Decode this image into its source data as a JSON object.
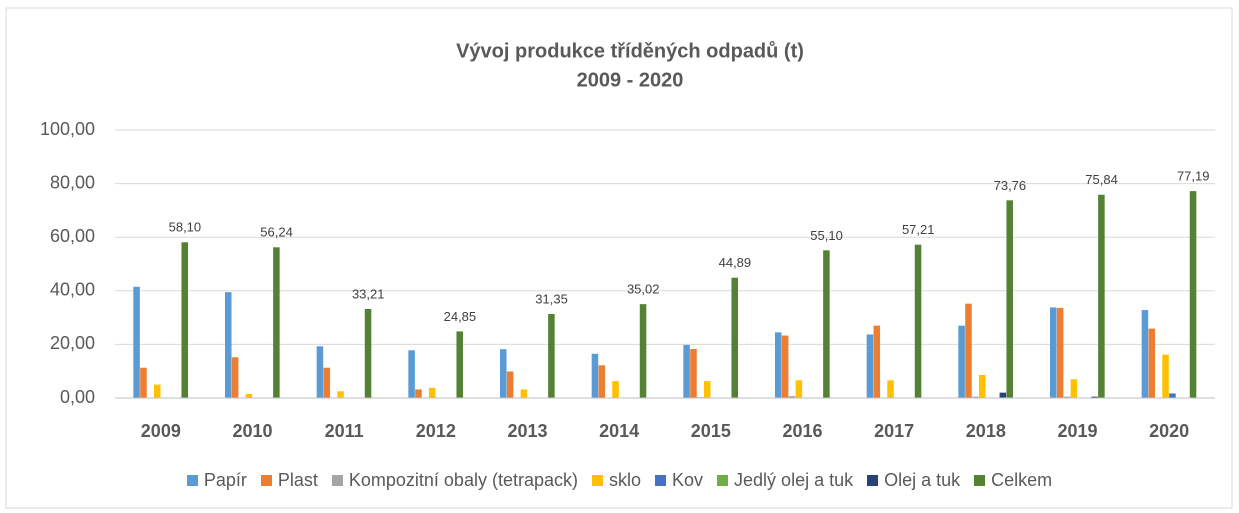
{
  "chart_data": {
    "type": "bar",
    "title": "Vývoj produkce tříděných odpadů (t)",
    "subtitle": "2009 - 2020",
    "categories": [
      "2009",
      "2010",
      "2011",
      "2012",
      "2013",
      "2014",
      "2015",
      "2016",
      "2017",
      "2018",
      "2019",
      "2020"
    ],
    "series": [
      {
        "name": "Papír",
        "color": "#5b9bd5",
        "values": [
          41.5,
          39.5,
          19.3,
          17.8,
          18.2,
          16.5,
          19.8,
          24.5,
          23.7,
          27.0,
          33.8,
          32.8
        ]
      },
      {
        "name": "Plast",
        "color": "#ed7d31",
        "values": [
          11.3,
          15.2,
          11.3,
          3.2,
          9.9,
          12.2,
          18.3,
          23.3,
          27.0,
          35.2,
          33.6,
          25.9
        ]
      },
      {
        "name": "Kompozitní obaly (tetrapack)",
        "color": "#a5a5a5",
        "values": [
          0,
          0,
          0,
          0,
          0,
          0,
          0.3,
          0.7,
          0,
          0.5,
          0.5,
          0
        ]
      },
      {
        "name": "sklo",
        "color": "#ffc000",
        "values": [
          5.0,
          1.5,
          2.5,
          3.8,
          3.2,
          6.3,
          6.3,
          6.6,
          6.6,
          8.6,
          7.0,
          16.2
        ]
      },
      {
        "name": "Kov",
        "color": "#4472c4",
        "values": [
          0,
          0,
          0,
          0,
          0,
          0,
          0,
          0,
          0,
          0,
          0,
          1.7
        ]
      },
      {
        "name": "Jedlý olej a tuk",
        "color": "#70ad47",
        "values": [
          0,
          0,
          0,
          0,
          0,
          0,
          0,
          0,
          0,
          0,
          0,
          0
        ]
      },
      {
        "name": "Olej a tuk",
        "color": "#264478",
        "values": [
          0,
          0,
          0,
          0,
          0,
          0,
          0,
          0,
          0,
          2.0,
          0.5,
          0
        ]
      },
      {
        "name": "Celkem",
        "color": "#548235",
        "values": [
          58.1,
          56.24,
          33.21,
          24.85,
          31.35,
          35.02,
          44.89,
          55.1,
          57.21,
          73.76,
          75.84,
          77.19
        ],
        "value_labels": [
          "58,10",
          "56,24",
          "33,21",
          "24,85",
          "31,35",
          "35,02",
          "44,89",
          "55,10",
          "57,21",
          "73,76",
          "75,84",
          "77,19"
        ]
      }
    ],
    "ylim": [
      0,
      100
    ],
    "yticks": [
      {
        "value": 0,
        "label": "0,00"
      },
      {
        "value": 20,
        "label": "20,00"
      },
      {
        "value": 40,
        "label": "40,00"
      },
      {
        "value": 60,
        "label": "60,00"
      },
      {
        "value": 80,
        "label": "80,00"
      },
      {
        "value": 100,
        "label": "100,00"
      }
    ],
    "grid": true,
    "legend": "bottom"
  }
}
